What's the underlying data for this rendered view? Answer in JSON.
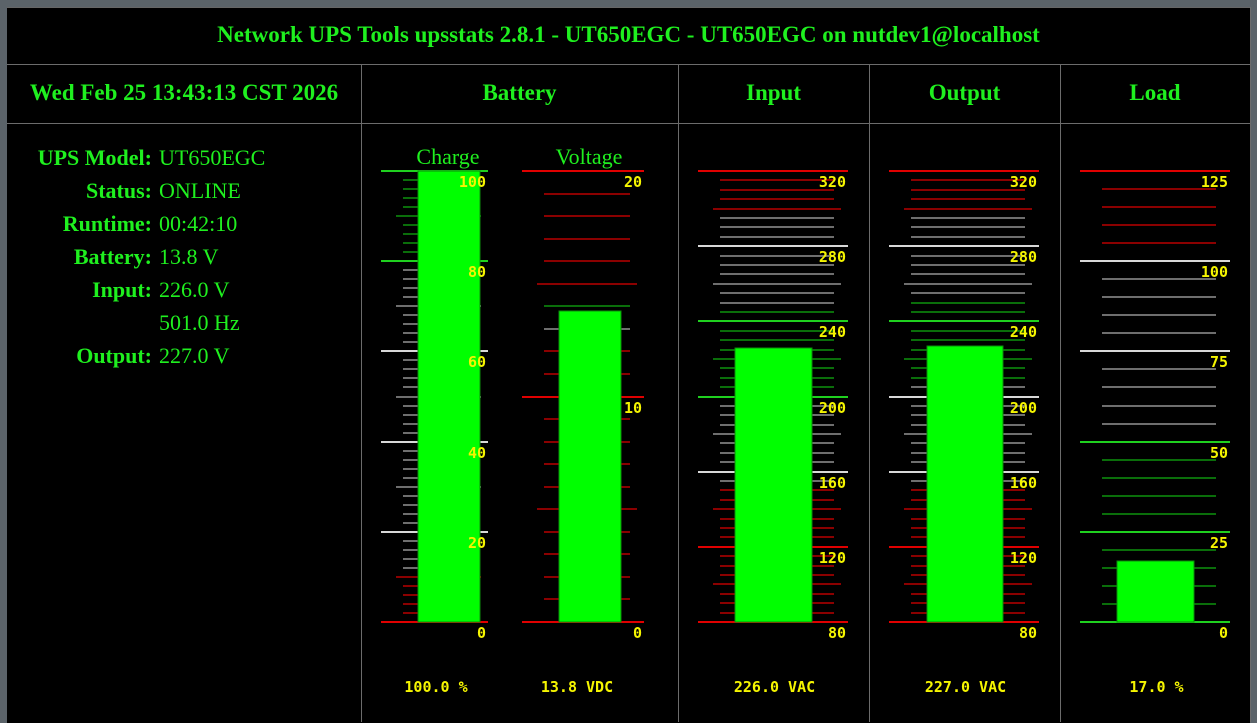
{
  "title": "Network UPS Tools upsstats 2.8.1 - UT650EGC - UT650EGC on nutdev1@localhost",
  "datetime": "Wed Feb 25 13:43:13 CST 2026",
  "headers": {
    "battery": "Battery",
    "input": "Input",
    "output": "Output",
    "load": "Load"
  },
  "info": [
    {
      "label": "UPS Model:",
      "value": "UT650EGC"
    },
    {
      "label": "Status:",
      "value": "ONLINE"
    },
    {
      "label": "Runtime:",
      "value": "00:42:10"
    },
    {
      "label": "Battery:",
      "value": "13.8 V"
    },
    {
      "label": "Input:",
      "value": "226.0 V"
    },
    {
      "label": "",
      "value": "501.0 Hz"
    },
    {
      "label": "Output:",
      "value": "227.0 V"
    }
  ],
  "colors": {
    "text": "#1ff01f",
    "value": "#f5f500",
    "bar": "#00ff00",
    "red": "#e00000",
    "dark_red": "#8b0000",
    "green": "#1fd01f",
    "dark_green": "#0a6e0a",
    "grey": "#6e6e6e",
    "white": "#d8d8d8"
  },
  "gauges": [
    {
      "id": "charge",
      "label": "Charge",
      "value_text": "100.0 %",
      "min": 0,
      "max": 100,
      "value": 100,
      "ticks": [
        "100",
        "80",
        "60",
        "40",
        "20",
        "0"
      ]
    },
    {
      "id": "voltage",
      "label": "Voltage",
      "value_text": "13.8 VDC",
      "min": 0,
      "max": 20,
      "value": 13.8,
      "ticks": [
        "20",
        "10",
        "0"
      ]
    },
    {
      "id": "input",
      "label": "",
      "value_text": "226.0 VAC",
      "min": 80,
      "max": 320,
      "value": 226,
      "ticks": [
        "320",
        "280",
        "240",
        "200",
        "160",
        "120",
        "80"
      ]
    },
    {
      "id": "output",
      "label": "",
      "value_text": "227.0 VAC",
      "min": 80,
      "max": 320,
      "value": 227,
      "ticks": [
        "320",
        "280",
        "240",
        "200",
        "160",
        "120",
        "80"
      ]
    },
    {
      "id": "load",
      "label": "",
      "value_text": "17.0 %",
      "min": 0,
      "max": 125,
      "value": 17,
      "ticks": [
        "125",
        "100",
        "75",
        "50",
        "25",
        "0"
      ]
    }
  ],
  "chart_data": [
    {
      "type": "bar",
      "title": "Charge",
      "categories": [
        "Charge"
      ],
      "values": [
        100.0
      ],
      "ylim": [
        0,
        100
      ],
      "ylabel": "%"
    },
    {
      "type": "bar",
      "title": "Voltage",
      "categories": [
        "Voltage"
      ],
      "values": [
        13.8
      ],
      "ylim": [
        0,
        20
      ],
      "ylabel": "VDC"
    },
    {
      "type": "bar",
      "title": "Input",
      "categories": [
        "Input"
      ],
      "values": [
        226.0
      ],
      "ylim": [
        80,
        320
      ],
      "ylabel": "VAC"
    },
    {
      "type": "bar",
      "title": "Output",
      "categories": [
        "Output"
      ],
      "values": [
        227.0
      ],
      "ylim": [
        80,
        320
      ],
      "ylabel": "VAC"
    },
    {
      "type": "bar",
      "title": "Load",
      "categories": [
        "Load"
      ],
      "values": [
        17.0
      ],
      "ylim": [
        0,
        125
      ],
      "ylabel": "%"
    }
  ]
}
